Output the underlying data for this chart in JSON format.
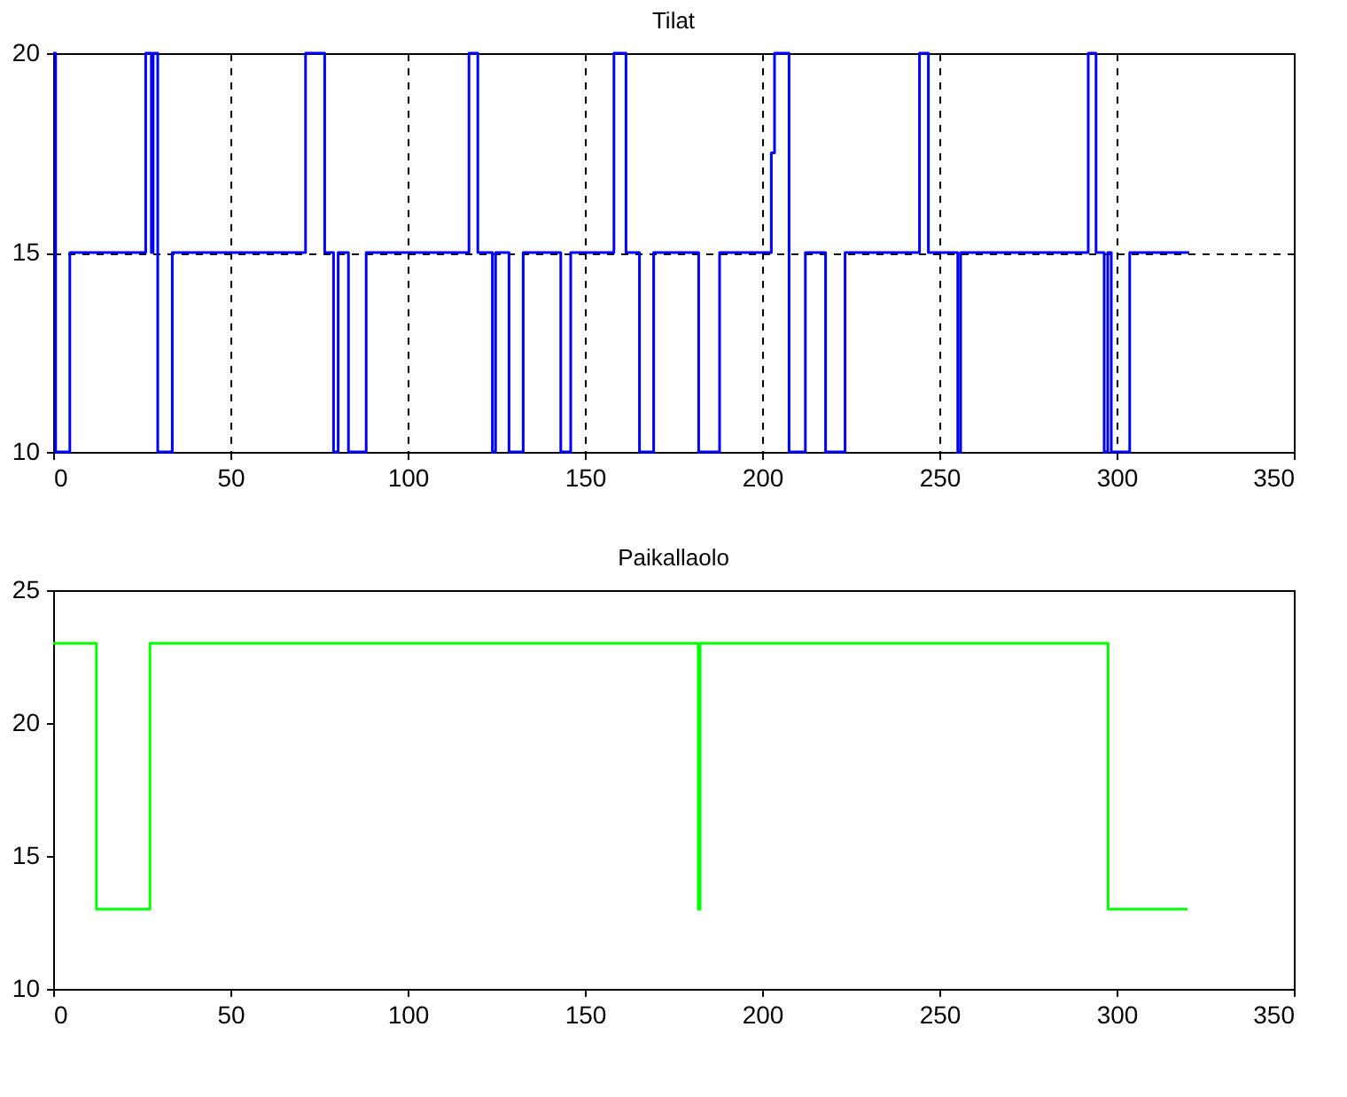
{
  "chart_data": [
    {
      "type": "step",
      "title": "Tilat",
      "xlim": [
        0,
        350
      ],
      "xticks": [
        0,
        50,
        100,
        150,
        200,
        250,
        300,
        350
      ],
      "ylim": [
        10,
        20
      ],
      "yticks": [
        10,
        15,
        20
      ],
      "grid": true,
      "series": [
        {
          "color": "#0000ff",
          "x": [
            0,
            0.7,
            4.7,
            26.1,
            27.7,
            28.2,
            29.5,
            33.6,
            71.2,
            76.6,
            79.1,
            80.4,
            83.3,
            88.3,
            117.3,
            119.8,
            123.9,
            124.8,
            128.6,
            132.6,
            143.2,
            146,
            158.2,
            161.6,
            165.4,
            169.4,
            182.1,
            188,
            202.6,
            203.5,
            207.6,
            212.2,
            217.9,
            223.4,
            244.4,
            246.9,
            255.2,
            256,
            292,
            294.2,
            296.5,
            297.5,
            298.5,
            303.7,
            320.5
          ],
          "values": [
            20,
            10,
            15,
            20,
            15,
            20,
            10,
            15,
            20,
            15,
            10,
            15,
            10,
            15,
            20,
            15,
            10,
            15,
            10,
            15,
            10,
            15,
            20,
            15,
            10,
            15,
            10,
            15,
            17.5,
            20,
            10,
            15,
            10,
            15,
            20,
            15,
            10,
            15,
            20,
            15,
            10,
            15,
            10,
            15,
            15
          ]
        }
      ]
    },
    {
      "type": "step",
      "title": "Paikallaolo",
      "xlim": [
        0,
        350
      ],
      "xticks": [
        0,
        50,
        100,
        150,
        200,
        250,
        300,
        350
      ],
      "ylim": [
        10,
        25
      ],
      "yticks": [
        10,
        15,
        20,
        25
      ],
      "grid": false,
      "series": [
        {
          "color": "#00ff00",
          "x": [
            0,
            12.2,
            27.3,
            182,
            182.5,
            297.6,
            320
          ],
          "values": [
            23,
            13,
            23,
            13,
            23,
            13,
            13
          ]
        }
      ]
    }
  ]
}
